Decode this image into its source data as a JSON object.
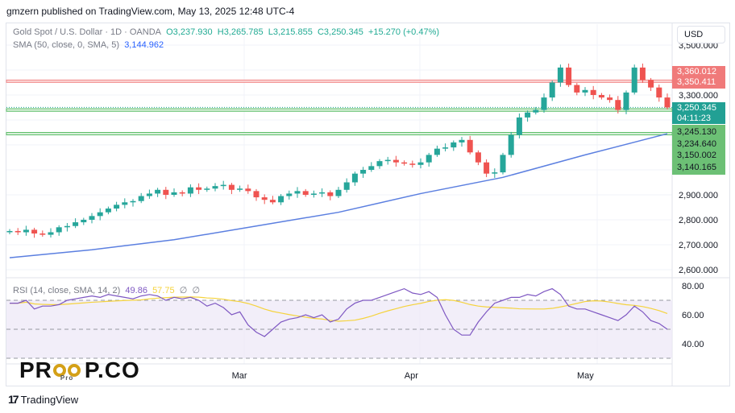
{
  "header": {
    "published": "gmzern published on TradingView.com, May 13, 2025 12:48 UTC-4"
  },
  "legend": {
    "symbol": "Gold Spot / U.S. Dollar · 1D · OANDA",
    "o": "O3,237.930",
    "h": "H3,265.785",
    "l": "L3,215.855",
    "c": "C3,250.345",
    "chg": "+15.270 (+0.47%)",
    "sma_label": "SMA (50, close, 0, SMA, 5)",
    "sma_value": "3,144.962"
  },
  "rsi_legend": {
    "label": "RSI (14, close, SMA, 14, 2)",
    "rsi": "49.86",
    "sma": "57.75",
    "extra1": "∅",
    "extra2": "∅"
  },
  "currency": "USD",
  "price_tags": {
    "r1": "3,360.012",
    "r2": "3,350.411",
    "cur": "3,250.345",
    "countdown": "04:11:23",
    "s1": "3,245.130",
    "s2": "3,234.640",
    "s3": "3,150.002",
    "s4": "3,140.165"
  },
  "logo": {
    "text_left": "PR",
    "text_right": "P.CO",
    "owl_text": "Pro"
  },
  "footer": {
    "brand": "TradingView"
  },
  "colors": {
    "up": "#26a69a",
    "down": "#ef5350",
    "sma": "#5b7fe0",
    "rsi": "#7e57c2",
    "rsi_sma": "#f5d33d",
    "resist": "#f28b8b",
    "support": "#5fbf6a"
  },
  "chart_data": {
    "type": "candlestick",
    "ylim": [
      2580,
      3540
    ],
    "price_ticks": [
      "3,500.000",
      "3,300.000",
      "2,900.000",
      "2,800.000",
      "2,700.000",
      "2,600.000"
    ],
    "price_tick_values": [
      3500,
      3300,
      2900,
      2800,
      2700,
      2600
    ],
    "x_labels": [
      "Mar",
      "Apr",
      "May"
    ],
    "x_label_bars": [
      28,
      49,
      70
    ],
    "closes": [
      2755,
      2750,
      2760,
      2745,
      2740,
      2750,
      2770,
      2775,
      2790,
      2800,
      2815,
      2830,
      2845,
      2860,
      2870,
      2875,
      2895,
      2905,
      2920,
      2900,
      2910,
      2905,
      2930,
      2920,
      2925,
      2935,
      2940,
      2920,
      2925,
      2915,
      2890,
      2880,
      2870,
      2895,
      2905,
      2915,
      2900,
      2905,
      2910,
      2895,
      2920,
      2950,
      2985,
      3000,
      3015,
      3035,
      3040,
      3030,
      3025,
      3020,
      3030,
      3060,
      3085,
      3090,
      3110,
      3120,
      3070,
      3030,
      2985,
      2990,
      3060,
      3140,
      3210,
      3230,
      3240,
      3290,
      3350,
      3410,
      3340,
      3310,
      3320,
      3300,
      3290,
      3280,
      3240,
      3310,
      3410,
      3360,
      3330,
      3290,
      3250
    ],
    "sma_points": {
      "bars": [
        0,
        10,
        20,
        30,
        40,
        50,
        60,
        70,
        80
      ],
      "values": [
        2648,
        2680,
        2720,
        2775,
        2830,
        2905,
        2970,
        3060,
        3145
      ]
    },
    "levels": {
      "resistance": [
        3360.012,
        3350.411
      ],
      "support": [
        3245.13,
        3234.64,
        3150.002,
        3140.165
      ],
      "current": 3250.345
    },
    "rsi": {
      "ylim": [
        25,
        85
      ],
      "ticks": [
        "80.00",
        "60.00",
        "40.00"
      ],
      "tick_values": [
        80,
        60,
        40
      ],
      "bands": [
        70,
        50,
        30
      ],
      "values": [
        68,
        68,
        70,
        64,
        66,
        66,
        67,
        70,
        71,
        72,
        73,
        72,
        74,
        73,
        72,
        71,
        73,
        74,
        73,
        70,
        72,
        71,
        72,
        70,
        66,
        68,
        65,
        60,
        62,
        53,
        48,
        45,
        50,
        55,
        57,
        58,
        60,
        58,
        60,
        55,
        57,
        64,
        68,
        70,
        70,
        72,
        74,
        76,
        78,
        75,
        74,
        76,
        72,
        60,
        50,
        46,
        46,
        55,
        62,
        68,
        70,
        72,
        72,
        74,
        73,
        76,
        78,
        74,
        66,
        64,
        64,
        62,
        60,
        58,
        56,
        60,
        66,
        62,
        56,
        54,
        50
      ]
    }
  }
}
